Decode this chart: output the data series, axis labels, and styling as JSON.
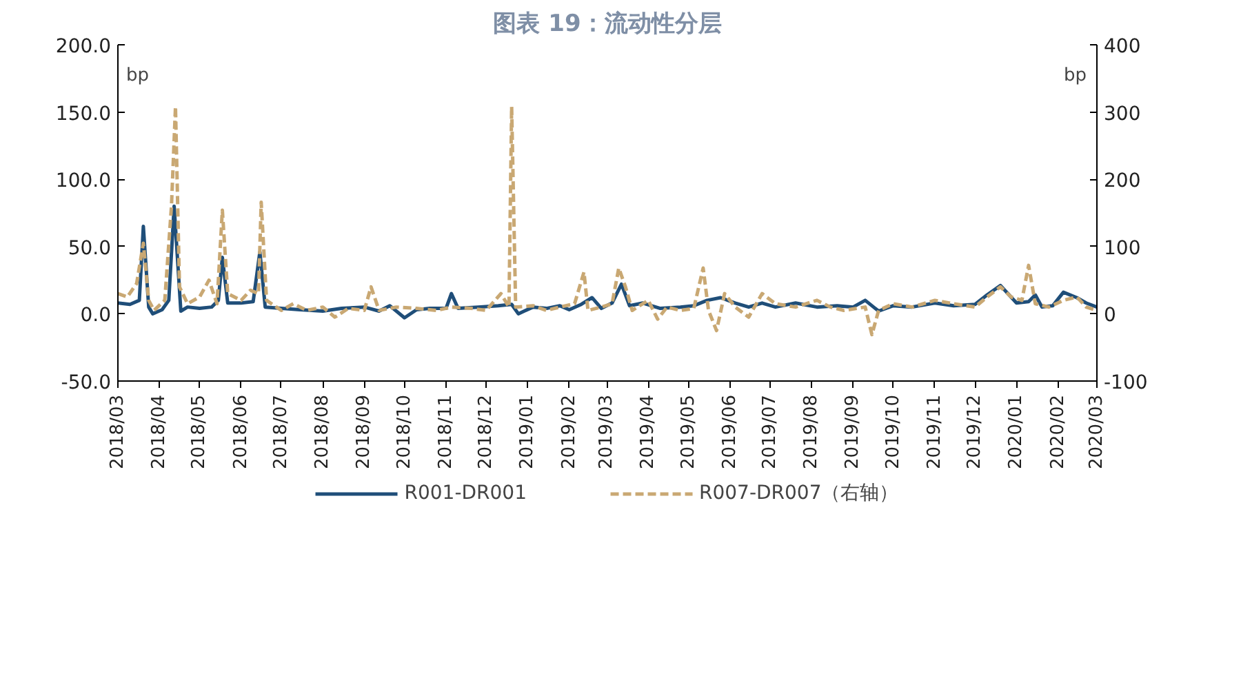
{
  "chart_data": {
    "type": "line",
    "title": "图表 19：流动性分层",
    "ylabel": "bp",
    "y2label": "bp",
    "xlim": [
      "2018-03",
      "2020-03"
    ],
    "xticks": [
      {
        "value": "2018-03",
        "label": "2018/03"
      },
      {
        "value": "2018-04",
        "label": "2018/04"
      },
      {
        "value": "2018-05",
        "label": "2018/05"
      },
      {
        "value": "2018-06",
        "label": "2018/06"
      },
      {
        "value": "2018-07",
        "label": "2018/07"
      },
      {
        "value": "2018-08",
        "label": "2018/08"
      },
      {
        "value": "2018-09",
        "label": "2018/09"
      },
      {
        "value": "2018-10",
        "label": "2018/10"
      },
      {
        "value": "2018-11",
        "label": "2018/11"
      },
      {
        "value": "2018-12",
        "label": "2018/12"
      },
      {
        "value": "2019-01",
        "label": "2019/01"
      },
      {
        "value": "2019-02",
        "label": "2019/02"
      },
      {
        "value": "2019-03",
        "label": "2019/03"
      },
      {
        "value": "2019-04",
        "label": "2019/04"
      },
      {
        "value": "2019-05",
        "label": "2019/05"
      },
      {
        "value": "2019-06",
        "label": "2019/06"
      },
      {
        "value": "2019-07",
        "label": "2019/07"
      },
      {
        "value": "2019-08",
        "label": "2019/08"
      },
      {
        "value": "2019-09",
        "label": "2019/09"
      },
      {
        "value": "2019-10",
        "label": "2019/10"
      },
      {
        "value": "2019-11",
        "label": "2019/11"
      },
      {
        "value": "2019-12",
        "label": "2019/12"
      },
      {
        "value": "2020-01",
        "label": "2020/01"
      },
      {
        "value": "2020-02",
        "label": "2020/02"
      },
      {
        "value": "2020-03",
        "label": "2020/03"
      }
    ],
    "ylim": [
      -50,
      200
    ],
    "yticks": [
      {
        "value": 200,
        "label": "200.0"
      },
      {
        "value": 150,
        "label": "150.0"
      },
      {
        "value": 100,
        "label": "100.0"
      },
      {
        "value": 50,
        "label": "50.0"
      },
      {
        "value": 0,
        "label": "0.0"
      },
      {
        "value": -50,
        "label": "-50.0"
      }
    ],
    "y2lim": [
      -100,
      400
    ],
    "y2ticks": [
      400,
      300,
      200,
      100,
      0,
      -100
    ],
    "grid": false,
    "legend": "bottom",
    "marker": "none",
    "series": [
      {
        "name": "R001-DR001",
        "color": "#1f4e79",
        "line_style": "solid",
        "x": [
          "2018-03-01",
          "2018-03-10",
          "2018-03-17",
          "2018-03-20",
          "2018-03-24",
          "2018-03-27",
          "2018-04-03",
          "2018-04-08",
          "2018-04-12",
          "2018-04-17",
          "2018-04-22",
          "2018-05-01",
          "2018-05-10",
          "2018-05-15",
          "2018-05-18",
          "2018-05-22",
          "2018-06-01",
          "2018-06-10",
          "2018-06-15",
          "2018-06-19",
          "2018-07-01",
          "2018-07-15",
          "2018-08-01",
          "2018-08-15",
          "2018-09-01",
          "2018-09-12",
          "2018-09-20",
          "2018-10-01",
          "2018-10-10",
          "2018-10-20",
          "2018-11-01",
          "2018-11-05",
          "2018-11-10",
          "2018-11-25",
          "2018-12-10",
          "2018-12-20",
          "2018-12-25",
          "2019-01-05",
          "2019-01-15",
          "2019-01-25",
          "2019-02-01",
          "2019-02-10",
          "2019-02-18",
          "2019-02-25",
          "2019-03-05",
          "2019-03-12",
          "2019-03-18",
          "2019-03-28",
          "2019-04-10",
          "2019-04-25",
          "2019-05-05",
          "2019-05-15",
          "2019-05-25",
          "2019-06-05",
          "2019-06-15",
          "2019-06-25",
          "2019-07-05",
          "2019-07-20",
          "2019-08-05",
          "2019-08-20",
          "2019-09-01",
          "2019-09-10",
          "2019-09-20",
          "2019-10-01",
          "2019-10-15",
          "2019-11-01",
          "2019-11-15",
          "2019-12-01",
          "2019-12-10",
          "2019-12-20",
          "2020-01-01",
          "2020-01-10",
          "2020-01-15",
          "2020-01-20",
          "2020-01-28",
          "2020-02-05",
          "2020-02-15",
          "2020-02-22",
          "2020-03-01"
        ],
        "values": [
          8,
          7,
          10,
          65,
          5,
          0,
          3,
          10,
          80,
          2,
          5,
          4,
          5,
          10,
          42,
          8,
          8,
          9,
          46,
          5,
          4,
          3,
          2,
          4,
          5,
          2,
          6,
          -3,
          3,
          4,
          4,
          15,
          4,
          5,
          6,
          7,
          0,
          5,
          4,
          6,
          3,
          7,
          12,
          4,
          8,
          22,
          6,
          8,
          4,
          5,
          6,
          10,
          12,
          8,
          5,
          8,
          5,
          8,
          5,
          6,
          5,
          10,
          2,
          6,
          5,
          8,
          6,
          7,
          14,
          21,
          8,
          9,
          14,
          5,
          6,
          16,
          12,
          8,
          5
        ]
      },
      {
        "name": "R007-DR007（右轴）",
        "color": "#c9a873",
        "axis": "y2",
        "line_style": "dashed",
        "x": [
          "2018-03-01",
          "2018-03-08",
          "2018-03-15",
          "2018-03-20",
          "2018-03-24",
          "2018-03-28",
          "2018-04-05",
          "2018-04-10",
          "2018-04-13",
          "2018-04-16",
          "2018-04-22",
          "2018-05-01",
          "2018-05-08",
          "2018-05-14",
          "2018-05-18",
          "2018-05-22",
          "2018-06-01",
          "2018-06-08",
          "2018-06-14",
          "2018-06-16",
          "2018-06-20",
          "2018-07-01",
          "2018-07-10",
          "2018-07-20",
          "2018-08-01",
          "2018-08-10",
          "2018-08-20",
          "2018-09-01",
          "2018-09-06",
          "2018-09-12",
          "2018-09-25",
          "2018-10-10",
          "2018-10-25",
          "2018-11-05",
          "2018-11-20",
          "2018-12-01",
          "2018-12-12",
          "2018-12-18",
          "2018-12-20",
          "2018-12-23",
          "2019-01-05",
          "2019-01-15",
          "2019-01-25",
          "2019-02-05",
          "2019-02-12",
          "2019-02-15",
          "2019-02-25",
          "2019-03-05",
          "2019-03-10",
          "2019-03-15",
          "2019-03-20",
          "2019-04-01",
          "2019-04-08",
          "2019-04-15",
          "2019-04-25",
          "2019-05-05",
          "2019-05-12",
          "2019-05-16",
          "2019-05-22",
          "2019-05-28",
          "2019-06-05",
          "2019-06-15",
          "2019-06-25",
          "2019-07-05",
          "2019-07-20",
          "2019-08-05",
          "2019-08-15",
          "2019-08-25",
          "2019-09-10",
          "2019-09-15",
          "2019-09-20",
          "2019-10-01",
          "2019-10-15",
          "2019-11-01",
          "2019-11-15",
          "2019-12-01",
          "2019-12-10",
          "2019-12-20",
          "2019-12-28",
          "2020-01-05",
          "2020-01-10",
          "2020-01-15",
          "2020-01-25",
          "2020-02-05",
          "2020-02-15",
          "2020-02-22",
          "2020-03-01"
        ],
        "values": [
          30,
          25,
          45,
          105,
          20,
          5,
          20,
          160,
          308,
          40,
          15,
          25,
          50,
          15,
          154,
          30,
          20,
          35,
          30,
          166,
          20,
          5,
          15,
          5,
          10,
          -5,
          8,
          5,
          40,
          5,
          10,
          8,
          5,
          10,
          8,
          5,
          30,
          10,
          308,
          10,
          12,
          5,
          10,
          15,
          62,
          5,
          10,
          15,
          68,
          40,
          5,
          20,
          -8,
          10,
          5,
          8,
          68,
          5,
          -25,
          30,
          10,
          -5,
          30,
          15,
          10,
          20,
          10,
          5,
          10,
          -31,
          5,
          15,
          10,
          20,
          15,
          10,
          25,
          40,
          25,
          20,
          72,
          15,
          10,
          20,
          25,
          10,
          5
        ]
      }
    ]
  }
}
